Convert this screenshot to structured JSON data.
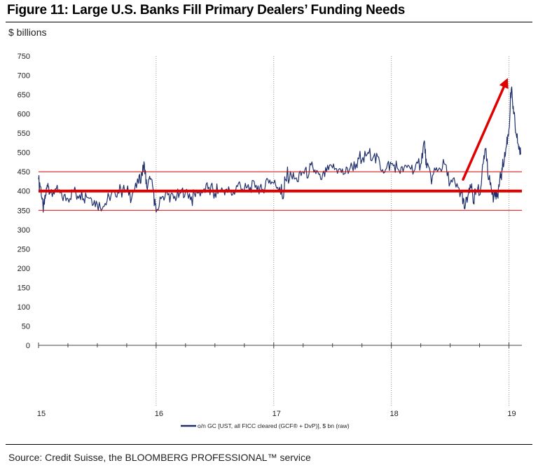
{
  "title": "Figure 11: Large U.S. Banks Fill Primary Dealers’ Funding Needs",
  "source": "Source: Credit Suisse, the BLOOMBERG PROFESSIONAL™ service",
  "colors": {
    "series": "#1f2f6b",
    "reference": "#e00000",
    "grid": "#9a9a9a",
    "axis": "#444444"
  },
  "chart_data": {
    "type": "line",
    "ylabel": "$ billions",
    "ylim": [
      0,
      750
    ],
    "yticks": [
      0,
      50,
      100,
      150,
      200,
      250,
      300,
      350,
      400,
      450,
      500,
      550,
      600,
      650,
      700,
      750
    ],
    "xlim": [
      15.0,
      19.11
    ],
    "xticks": [
      {
        "value": 15,
        "label": "15"
      },
      {
        "value": 16,
        "label": "16"
      },
      {
        "value": 17,
        "label": "17"
      },
      {
        "value": 18,
        "label": "18"
      },
      {
        "value": 19,
        "label": "19"
      }
    ],
    "vertical_gridlines_at": [
      16,
      17,
      18,
      19
    ],
    "reference_lines": [
      {
        "value": 450,
        "style": "thin"
      },
      {
        "value": 400,
        "style": "thick"
      },
      {
        "value": 350,
        "style": "thin"
      }
    ],
    "annotations": [
      {
        "type": "arrow",
        "from": {
          "x": 18.61,
          "y": 430
        },
        "to": {
          "x": 18.99,
          "y": 693
        }
      }
    ],
    "legend": {
      "position": "bottom-center",
      "label": "o/n GC [UST, all FICC cleared (GCF® + DvP)], $ bn (raw)"
    },
    "series": [
      {
        "name": "o/n GC [UST, all FICC cleared (GCF® + DvP)], $ bn (raw)",
        "x": [
          15.0,
          15.02,
          15.04,
          15.06,
          15.08,
          15.1,
          15.15,
          15.2,
          15.25,
          15.3,
          15.35,
          15.4,
          15.45,
          15.5,
          15.55,
          15.6,
          15.65,
          15.7,
          15.75,
          15.8,
          15.85,
          15.88,
          15.9,
          15.92,
          15.95,
          15.98,
          16.0,
          16.05,
          16.1,
          16.15,
          16.2,
          16.25,
          16.3,
          16.35,
          16.4,
          16.45,
          16.5,
          16.55,
          16.6,
          16.65,
          16.7,
          16.75,
          16.8,
          16.85,
          16.9,
          16.95,
          17.0,
          17.05,
          17.08,
          17.1,
          17.15,
          17.2,
          17.25,
          17.3,
          17.35,
          17.4,
          17.45,
          17.5,
          17.55,
          17.6,
          17.65,
          17.7,
          17.75,
          17.8,
          17.85,
          17.9,
          17.95,
          18.0,
          18.05,
          18.1,
          18.15,
          18.2,
          18.25,
          18.28,
          18.3,
          18.35,
          18.4,
          18.45,
          18.5,
          18.55,
          18.6,
          18.62,
          18.65,
          18.68,
          18.7,
          18.72,
          18.75,
          18.78,
          18.8,
          18.83,
          18.86,
          18.88,
          18.9,
          18.92,
          18.94,
          18.96,
          18.98,
          19.0,
          19.02,
          19.04,
          19.06,
          19.08,
          19.1
        ],
        "values": [
          430,
          410,
          345,
          390,
          420,
          395,
          405,
          385,
          380,
          400,
          390,
          395,
          380,
          365,
          360,
          385,
          395,
          405,
          400,
          395,
          420,
          445,
          470,
          410,
          430,
          400,
          345,
          385,
          390,
          380,
          395,
          400,
          385,
          395,
          400,
          410,
          395,
          400,
          405,
          390,
          420,
          405,
          410,
          415,
          400,
          430,
          420,
          410,
          380,
          430,
          440,
          425,
          450,
          445,
          455,
          430,
          450,
          460,
          455,
          445,
          460,
          470,
          480,
          500,
          490,
          475,
          455,
          470,
          460,
          450,
          465,
          455,
          470,
          530,
          460,
          440,
          455,
          470,
          420,
          410,
          395,
          355,
          385,
          410,
          370,
          400,
          390,
          470,
          510,
          430,
          400,
          390,
          385,
          420,
          460,
          480,
          520,
          560,
          665,
          600,
          550,
          520,
          495
        ]
      }
    ]
  }
}
